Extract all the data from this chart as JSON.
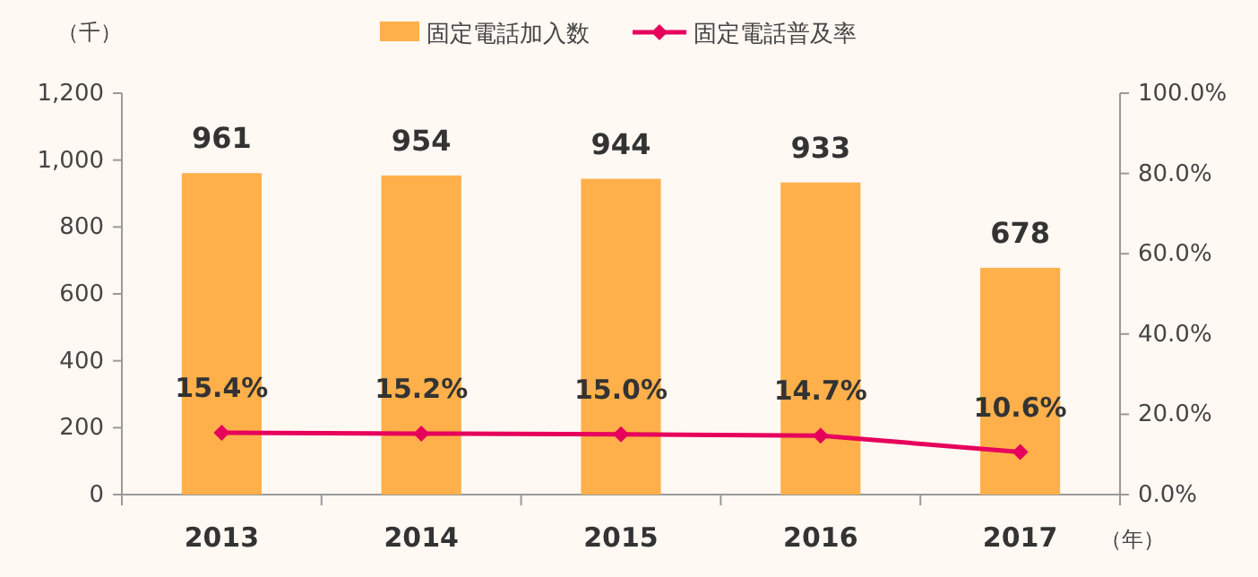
{
  "chart_data": {
    "type": "bar",
    "ylabel": "（千）",
    "xlabel": "（年）",
    "categories": [
      "2013",
      "2014",
      "2015",
      "2016",
      "2017"
    ],
    "series": [
      {
        "name": "固定電話加入数",
        "color": "#ffb04a",
        "values": [
          961,
          954,
          944,
          933,
          678
        ]
      },
      {
        "name": "固定電話普及率",
        "type": "line",
        "axis": "y2",
        "color": "#e6005c",
        "marker": "diamond",
        "values": [
          15.4,
          15.2,
          15.0,
          14.7,
          10.6
        ],
        "value_labels": [
          "15.4%",
          "15.2%",
          "15.0%",
          "14.7%",
          "10.6%"
        ]
      }
    ],
    "data_labels": true,
    "ylim": [
      0,
      1200
    ],
    "yticks": [
      0,
      200,
      400,
      600,
      800,
      {
        "value": 1000,
        "label": "1,000"
      },
      {
        "value": 1200,
        "label": "1,200"
      }
    ],
    "y2lim": [
      0,
      100
    ],
    "y2ticks": [
      {
        "value": 0,
        "label": "0.0%"
      },
      {
        "value": 20,
        "label": "20.0%"
      },
      {
        "value": 40,
        "label": "40.0%"
      },
      {
        "value": 60,
        "label": "60.0%"
      },
      {
        "value": 80,
        "label": "80.0%"
      },
      {
        "value": 100,
        "label": "100.0%"
      }
    ],
    "legend": "top",
    "grid": false
  }
}
